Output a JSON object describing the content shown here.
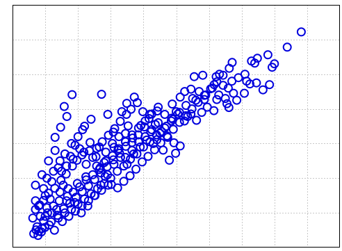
{
  "chart_data": {
    "type": "scatter",
    "title": "",
    "xlabel": "",
    "ylabel": "",
    "xlim": [
      0,
      10
    ],
    "ylim": [
      0,
      7
    ],
    "grid": true,
    "grid_style": "dotted",
    "x_ticks": [
      1,
      2,
      3,
      4,
      5,
      6,
      7,
      8,
      9
    ],
    "y_ticks": [
      1,
      2,
      3,
      4,
      5,
      6
    ],
    "tick_labels_visible": false,
    "marker": "open-circle",
    "marker_color": "#0000dd",
    "series": [
      {
        "points": [
          [
            8.82,
            6.22
          ],
          [
            8.39,
            5.78
          ],
          [
            7.8,
            5.56
          ],
          [
            7.3,
            5.38
          ],
          [
            8.0,
            5.3
          ],
          [
            7.93,
            5.2
          ],
          [
            7.4,
            5.32
          ],
          [
            7.48,
            5.46
          ],
          [
            6.71,
            5.34
          ],
          [
            6.22,
            4.93
          ],
          [
            6.32,
            5.0
          ],
          [
            6.43,
            4.68
          ],
          [
            6.59,
            4.6
          ],
          [
            6.16,
            4.7
          ],
          [
            5.55,
            4.93
          ],
          [
            5.81,
            4.97
          ],
          [
            5.45,
            4.57
          ],
          [
            5.26,
            4.5
          ],
          [
            5.12,
            4.34
          ],
          [
            4.88,
            4.14
          ],
          [
            7.08,
            4.45
          ],
          [
            7.25,
            4.72
          ],
          [
            6.85,
            4.25
          ],
          [
            6.61,
            4.04
          ],
          [
            6.24,
            4.27
          ],
          [
            5.86,
            4.27
          ],
          [
            5.78,
            3.9
          ],
          [
            5.62,
            3.67
          ],
          [
            5.35,
            3.78
          ],
          [
            5.0,
            3.92
          ],
          [
            4.86,
            3.73
          ],
          [
            4.65,
            3.84
          ],
          [
            4.42,
            3.94
          ],
          [
            4.19,
            3.84
          ],
          [
            3.92,
            3.52
          ],
          [
            3.67,
            3.16
          ],
          [
            3.53,
            3.51
          ],
          [
            3.45,
            3.29
          ],
          [
            3.22,
            2.81
          ],
          [
            3.1,
            2.89
          ],
          [
            2.8,
            2.45
          ],
          [
            2.57,
            2.35
          ],
          [
            2.24,
            2.04
          ],
          [
            1.98,
            1.85
          ],
          [
            1.68,
            1.48
          ],
          [
            1.43,
            1.35
          ],
          [
            1.25,
            1.2
          ],
          [
            1.07,
            1.0
          ],
          [
            0.95,
            0.77
          ],
          [
            0.88,
            0.45
          ],
          [
            0.72,
            0.51
          ],
          [
            0.62,
            0.85
          ],
          [
            0.7,
            1.1
          ],
          [
            0.83,
            1.23
          ],
          [
            0.95,
            1.36
          ],
          [
            1.1,
            1.57
          ],
          [
            1.29,
            1.71
          ],
          [
            1.48,
            1.94
          ],
          [
            1.64,
            2.12
          ],
          [
            1.83,
            2.35
          ],
          [
            1.97,
            2.52
          ],
          [
            2.12,
            2.67
          ],
          [
            2.35,
            2.79
          ],
          [
            2.57,
            2.86
          ],
          [
            2.74,
            3.05
          ],
          [
            2.93,
            3.24
          ],
          [
            3.12,
            3.43
          ],
          [
            3.29,
            3.64
          ],
          [
            3.48,
            3.84
          ],
          [
            3.62,
            3.99
          ],
          [
            3.81,
            4.18
          ],
          [
            3.98,
            3.92
          ],
          [
            4.17,
            3.72
          ],
          [
            4.36,
            3.55
          ],
          [
            4.55,
            3.35
          ],
          [
            4.74,
            3.18
          ],
          [
            4.93,
            3.02
          ],
          [
            5.12,
            2.93
          ],
          [
            4.98,
            2.72
          ],
          [
            4.79,
            2.52
          ],
          [
            4.6,
            2.81
          ],
          [
            4.41,
            3.11
          ],
          [
            4.22,
            3.34
          ],
          [
            4.03,
            3.48
          ],
          [
            3.84,
            3.25
          ],
          [
            3.65,
            3.03
          ],
          [
            3.46,
            2.92
          ],
          [
            3.27,
            2.72
          ],
          [
            3.08,
            2.53
          ],
          [
            2.89,
            2.33
          ],
          [
            2.7,
            2.15
          ],
          [
            2.51,
            1.96
          ],
          [
            2.32,
            1.78
          ],
          [
            2.13,
            1.61
          ],
          [
            1.94,
            1.45
          ],
          [
            1.75,
            1.28
          ],
          [
            1.56,
            1.12
          ],
          [
            1.37,
            0.93
          ],
          [
            1.18,
            0.74
          ],
          [
            0.99,
            0.58
          ],
          [
            0.8,
            0.47
          ],
          [
            1.3,
            3.18
          ],
          [
            1.47,
            3.47
          ],
          [
            2.14,
            3.4
          ],
          [
            1.66,
            3.78
          ],
          [
            1.58,
            4.07
          ],
          [
            1.82,
            4.41
          ],
          [
            2.72,
            4.42
          ],
          [
            2.91,
            3.84
          ],
          [
            3.08,
            3.33
          ],
          [
            3.34,
            3.92
          ],
          [
            3.49,
            4.16
          ],
          [
            3.72,
            4.34
          ],
          [
            2.18,
            2.75
          ],
          [
            2.37,
            3.03
          ],
          [
            1.91,
            2.95
          ],
          [
            1.77,
            2.63
          ],
          [
            2.55,
            2.62
          ],
          [
            2.68,
            2.3
          ],
          [
            2.83,
            2.05
          ],
          [
            3.02,
            1.82
          ],
          [
            3.21,
            1.72
          ],
          [
            3.4,
            1.91
          ],
          [
            3.59,
            2.07
          ],
          [
            3.77,
            2.26
          ],
          [
            3.96,
            2.47
          ],
          [
            4.14,
            2.63
          ],
          [
            4.34,
            2.82
          ],
          [
            4.53,
            3.02
          ],
          [
            4.72,
            3.22
          ],
          [
            4.91,
            3.41
          ],
          [
            5.1,
            3.61
          ],
          [
            5.29,
            3.8
          ],
          [
            5.48,
            4.0
          ],
          [
            5.67,
            4.19
          ],
          [
            5.86,
            4.39
          ],
          [
            6.05,
            4.58
          ],
          [
            6.24,
            4.78
          ],
          [
            6.43,
            4.97
          ],
          [
            6.62,
            5.17
          ],
          [
            1.0,
            1.5
          ],
          [
            1.2,
            1.9
          ],
          [
            1.4,
            2.3
          ],
          [
            1.6,
            2.7
          ],
          [
            1.8,
            3.0
          ],
          [
            2.0,
            3.2
          ],
          [
            2.2,
            3.5
          ],
          [
            2.4,
            3.7
          ],
          [
            0.7,
            1.8
          ],
          [
            0.9,
            2.1
          ],
          [
            1.1,
            2.5
          ],
          [
            1.3,
            2.8
          ],
          [
            1.5,
            2.2
          ],
          [
            1.7,
            1.7
          ],
          [
            1.9,
            1.3
          ],
          [
            2.1,
            1.0
          ],
          [
            2.3,
            1.2
          ],
          [
            2.5,
            1.5
          ],
          [
            2.7,
            1.8
          ],
          [
            2.9,
            2.1
          ],
          [
            3.1,
            2.4
          ],
          [
            3.3,
            2.6
          ],
          [
            3.5,
            2.4
          ],
          [
            3.7,
            2.7
          ],
          [
            3.9,
            2.9
          ],
          [
            4.1,
            3.1
          ],
          [
            4.3,
            3.0
          ],
          [
            4.5,
            3.3
          ],
          [
            4.7,
            3.5
          ],
          [
            4.9,
            3.7
          ],
          [
            5.1,
            3.9
          ],
          [
            5.3,
            4.1
          ],
          [
            5.5,
            4.3
          ],
          [
            5.7,
            4.5
          ],
          [
            5.9,
            4.4
          ],
          [
            6.1,
            4.6
          ],
          [
            6.3,
            4.4
          ],
          [
            6.5,
            4.3
          ],
          [
            6.7,
            4.8
          ],
          [
            6.9,
            4.9
          ],
          [
            7.1,
            5.0
          ],
          [
            0.75,
            0.6
          ],
          [
            0.85,
            0.9
          ],
          [
            1.05,
            1.15
          ],
          [
            1.15,
            1.4
          ],
          [
            1.35,
            1.1
          ],
          [
            1.45,
            1.6
          ],
          [
            1.55,
            1.8
          ],
          [
            1.65,
            1.35
          ],
          [
            1.85,
            1.6
          ],
          [
            2.05,
            1.75
          ],
          [
            2.25,
            1.95
          ],
          [
            2.45,
            2.1
          ],
          [
            2.65,
            2.25
          ],
          [
            2.85,
            2.5
          ],
          [
            3.05,
            2.65
          ],
          [
            3.25,
            2.85
          ],
          [
            3.45,
            2.6
          ],
          [
            3.65,
            2.8
          ],
          [
            3.85,
            3.05
          ],
          [
            4.05,
            3.2
          ],
          [
            4.25,
            3.4
          ],
          [
            4.45,
            3.6
          ],
          [
            4.65,
            3.45
          ],
          [
            4.85,
            3.65
          ],
          [
            5.05,
            3.85
          ],
          [
            5.25,
            3.65
          ],
          [
            5.45,
            3.85
          ],
          [
            0.8,
            1.2
          ],
          [
            1.0,
            0.9
          ],
          [
            1.2,
            1.0
          ],
          [
            1.4,
            0.85
          ],
          [
            1.6,
            1.0
          ],
          [
            1.8,
            1.1
          ],
          [
            2.0,
            1.25
          ],
          [
            2.2,
            1.4
          ],
          [
            2.4,
            1.55
          ],
          [
            2.6,
            1.7
          ],
          [
            2.8,
            1.85
          ],
          [
            3.0,
            2.0
          ],
          [
            3.2,
            2.2
          ],
          [
            3.4,
            2.35
          ],
          [
            3.6,
            2.55
          ],
          [
            3.8,
            2.7
          ],
          [
            4.0,
            2.9
          ],
          [
            4.2,
            3.05
          ],
          [
            4.4,
            3.25
          ],
          [
            0.65,
            0.4
          ],
          [
            0.78,
            0.35
          ],
          [
            0.9,
            0.55
          ],
          [
            1.12,
            0.65
          ],
          [
            1.28,
            0.5
          ],
          [
            1.52,
            0.75
          ],
          [
            1.72,
            0.9
          ],
          [
            1.92,
            1.05
          ],
          [
            2.12,
            1.2
          ],
          [
            2.32,
            1.35
          ],
          [
            2.52,
            1.5
          ],
          [
            2.72,
            1.65
          ],
          [
            2.92,
            1.8
          ],
          [
            0.7,
            1.35
          ],
          [
            0.95,
            1.7
          ],
          [
            1.05,
            2.0
          ],
          [
            1.25,
            2.2
          ],
          [
            1.45,
            2.5
          ],
          [
            1.65,
            2.35
          ],
          [
            1.85,
            2.55
          ],
          [
            2.05,
            2.85
          ],
          [
            2.25,
            2.4
          ],
          [
            2.45,
            2.6
          ],
          [
            2.65,
            2.9
          ],
          [
            2.85,
            2.75
          ],
          [
            3.05,
            3.0
          ],
          [
            3.25,
            3.2
          ],
          [
            3.45,
            3.05
          ],
          [
            3.65,
            3.25
          ],
          [
            3.85,
            3.45
          ],
          [
            4.05,
            3.65
          ],
          [
            4.25,
            3.85
          ],
          [
            4.45,
            4.05
          ],
          [
            5.6,
            4.25
          ],
          [
            5.95,
            4.05
          ],
          [
            6.15,
            3.95
          ],
          [
            6.55,
            4.15
          ],
          [
            6.75,
            4.45
          ],
          [
            7.15,
            4.8
          ],
          [
            7.45,
            4.75
          ],
          [
            7.65,
            4.55
          ],
          [
            7.85,
            4.7
          ]
        ]
      }
    ]
  }
}
